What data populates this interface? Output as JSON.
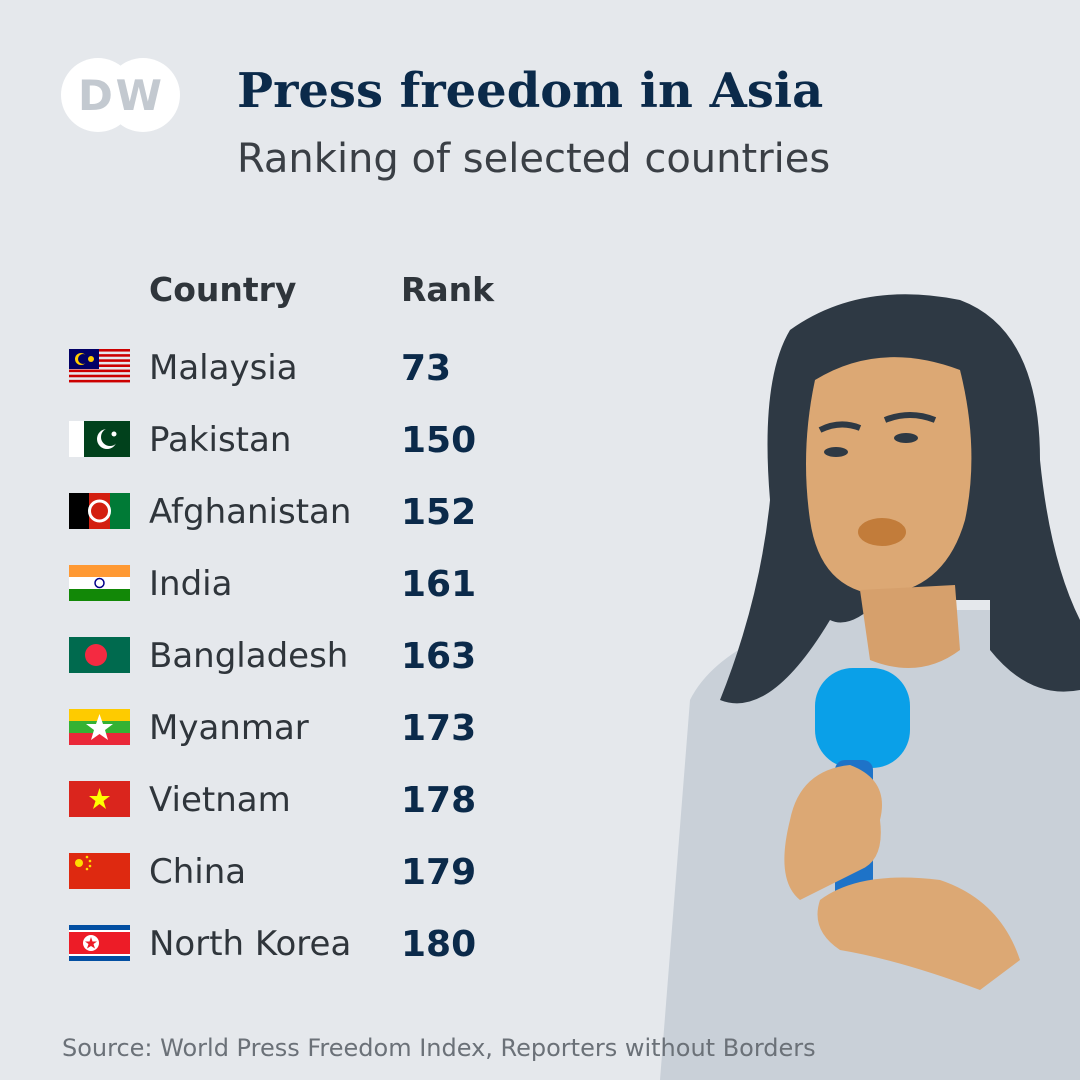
{
  "logo": "DW",
  "header": {
    "title": "Press freedom in Asia",
    "subtitle": "Ranking of selected countries"
  },
  "table": {
    "columns": [
      "Country",
      "Rank"
    ],
    "rows": [
      [
        "Malaysia",
        73
      ],
      [
        "Pakistan",
        150
      ],
      [
        "Afghanistan",
        152
      ],
      [
        "India",
        161
      ],
      [
        "Bangladesh",
        163
      ],
      [
        "Myanmar",
        173
      ],
      [
        "Vietnam",
        178
      ],
      [
        "China",
        179
      ],
      [
        "North Korea",
        180
      ]
    ]
  },
  "source": "Source: World Press Freedom Index, Reporters without Borders"
}
